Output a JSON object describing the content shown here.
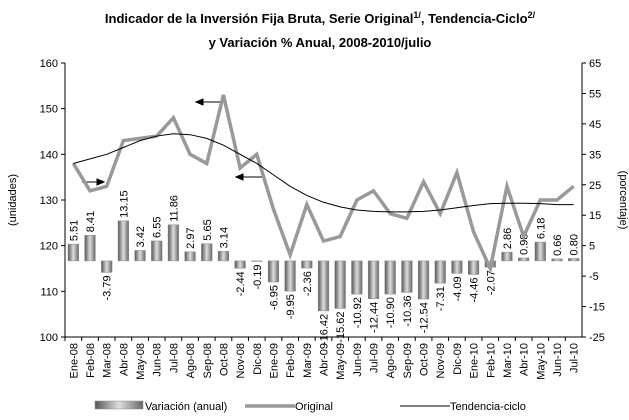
{
  "chart_data": {
    "type": "combo",
    "title": [
      "Indicador de la Inversión Fija Bruta, Serie Original",
      "1/",
      ", Tendencia-Ciclo",
      "2/"
    ],
    "subtitle": "y Variación % Anual, 2008-2010/julio",
    "ylabel": "(unidades)",
    "y2label": "(porcentaje)",
    "categories": [
      "Ene-08",
      "Feb-08",
      "Mar-08",
      "Abr-08",
      "May-08",
      "Jun-08",
      "Jul-08",
      "Ago-08",
      "Sep-08",
      "Oct-08",
      "Nov-08",
      "Dic-08",
      "Ene-09",
      "Feb-09",
      "Mar-09",
      "Abr-09",
      "May-09",
      "Jun-09",
      "Jul-09",
      "Ago-09",
      "Sep-09",
      "Oct-09",
      "Nov-09",
      "Dic-09",
      "Ene-10",
      "Feb-10",
      "Mar-10",
      "Abr-10",
      "May-10",
      "Jun-10",
      "Jul-10"
    ],
    "ylim": [
      100,
      160
    ],
    "yticks": [
      100,
      110,
      120,
      130,
      140,
      150,
      160
    ],
    "y2lim": [
      -25,
      65
    ],
    "y2ticks": [
      -25,
      -15,
      -5,
      5,
      15,
      25,
      35,
      45,
      55,
      65
    ],
    "series": [
      {
        "name": "Variación (anual)",
        "type": "bar",
        "axis": "y2",
        "color": "#8c8c8c",
        "values": [
          5.51,
          8.41,
          -3.79,
          13.15,
          3.42,
          6.55,
          11.86,
          2.97,
          5.65,
          3.14,
          -2.44,
          -0.19,
          -6.95,
          -9.95,
          -2.36,
          -16.42,
          -15.62,
          -10.92,
          -12.44,
          -10.9,
          -10.36,
          -12.54,
          -7.31,
          -4.09,
          -4.46,
          -2.07,
          2.86,
          0.98,
          6.18,
          0.66,
          0.8
        ],
        "value_labels": [
          "5.51",
          "8.41",
          "-3.79",
          "13.15",
          "3.42",
          "6.55",
          "11.86",
          "2.97",
          "5.65",
          "3.14",
          "-2.44",
          "-0.19",
          "-6.95",
          "-9.95",
          "-2.36",
          "-16.42",
          "-15.62",
          "-10.92",
          "-12.44",
          "-10.90",
          "-10.36",
          "-12.54",
          "-7.31",
          "-4.09",
          "-4.46",
          "-2.07",
          "2.86",
          "0.98",
          "6.18",
          "0.66",
          "0.80"
        ]
      },
      {
        "name": "Original",
        "type": "line",
        "color": "#999999",
        "width": 3.5,
        "values": [
          138,
          132,
          133,
          143,
          143.5,
          144,
          148,
          140,
          138,
          153,
          137,
          140,
          128,
          118,
          129,
          121,
          122,
          130,
          132,
          127,
          126,
          134,
          127,
          136,
          123,
          115,
          133,
          122,
          130,
          130,
          133
        ]
      },
      {
        "name": "Tendencia-ciclo",
        "type": "line",
        "color": "#000000",
        "width": 1,
        "values": [
          138,
          139,
          140,
          141.5,
          143,
          144,
          144.5,
          144.3,
          143.5,
          142,
          140,
          138,
          135.5,
          133,
          131,
          129.5,
          128.5,
          127.8,
          127.5,
          127.4,
          127.4,
          127.5,
          127.8,
          128.3,
          128.8,
          129.2,
          129.3,
          129.3,
          129.2,
          129,
          129
        ]
      }
    ]
  }
}
